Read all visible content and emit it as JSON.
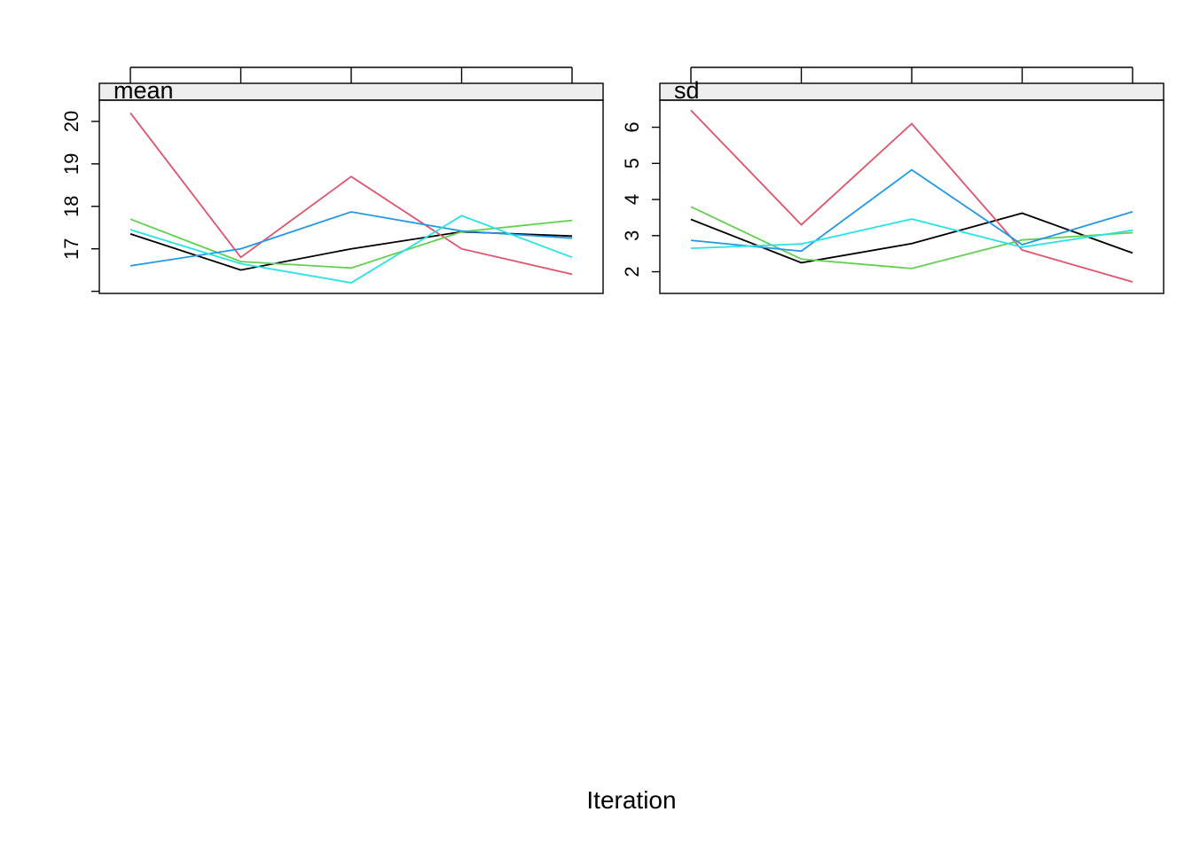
{
  "chart_data": {
    "type": "line",
    "xlabel": "Iteration",
    "ylabel": "",
    "x": [
      1,
      2,
      3,
      4,
      5
    ],
    "series_colors": [
      "#000000",
      "#DF536B",
      "#61D04F",
      "#2297E6",
      "#28E2E5"
    ],
    "panels": [
      {
        "name": "mean",
        "label": "mean",
        "ylim": [
          15.95,
          20.5
        ],
        "yticks": [
          16,
          17,
          18,
          19,
          20
        ],
        "ytick_labels": [
          "",
          "17",
          "18",
          "19",
          "20"
        ],
        "series": [
          {
            "color": "#000000",
            "values": [
              17.35,
              16.5,
              17.0,
              17.4,
              17.3
            ]
          },
          {
            "color": "#DF536B",
            "values": [
              20.2,
              16.8,
              18.7,
              17.0,
              16.4
            ]
          },
          {
            "color": "#61D04F",
            "values": [
              17.7,
              16.7,
              16.55,
              17.4,
              17.67
            ]
          },
          {
            "color": "#2297E6",
            "values": [
              16.6,
              17.0,
              17.87,
              17.42,
              17.25
            ]
          },
          {
            "color": "#28E2E5",
            "values": [
              17.45,
              16.65,
              16.2,
              17.78,
              16.8
            ]
          }
        ]
      },
      {
        "name": "sd",
        "label": "sd",
        "ylim": [
          1.4,
          6.75
        ],
        "yticks": [
          2,
          3,
          4,
          5,
          6
        ],
        "ytick_labels": [
          "2",
          "3",
          "4",
          "5",
          "6"
        ],
        "series": [
          {
            "color": "#000000",
            "values": [
              3.45,
              2.25,
              2.78,
              3.62,
              2.52
            ]
          },
          {
            "color": "#DF536B",
            "values": [
              6.47,
              3.3,
              6.1,
              2.6,
              1.72
            ]
          },
          {
            "color": "#61D04F",
            "values": [
              3.8,
              2.35,
              2.09,
              2.88,
              3.08
            ]
          },
          {
            "color": "#2297E6",
            "values": [
              2.87,
              2.57,
              4.82,
              2.75,
              3.66
            ]
          },
          {
            "color": "#28E2E5",
            "values": [
              2.65,
              2.77,
              3.46,
              2.68,
              3.15
            ]
          }
        ]
      }
    ]
  }
}
